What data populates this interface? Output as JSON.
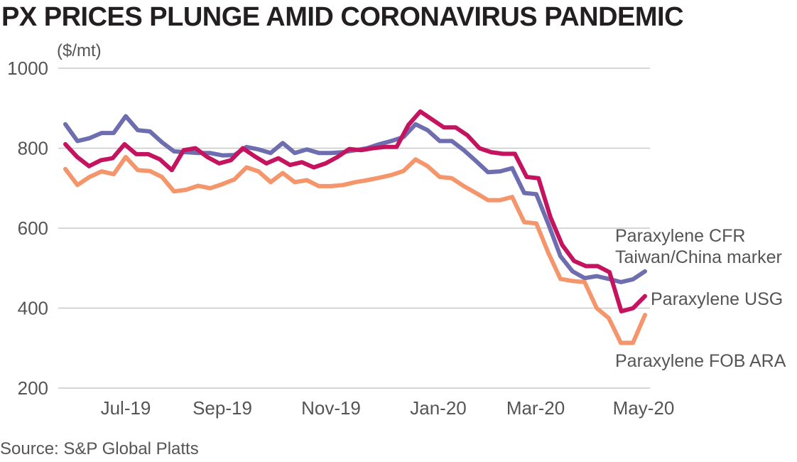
{
  "chart_data": {
    "type": "line",
    "title": "PX PRICES PLUNGE AMID CORONAVIRUS PANDEMIC",
    "ylabel": "($/mt)",
    "source": "Source: S&P Global Platts",
    "ylim": [
      200,
      1000
    ],
    "yticks": [
      1000,
      800,
      600,
      400,
      200
    ],
    "xtick_labels": [
      "Jul-19",
      "Sep-19",
      "Nov-19",
      "Jan-20",
      "Mar-20",
      "May-20"
    ],
    "grid": true,
    "series": [
      {
        "name": "Paraxylene CFR Taiwan/China marker",
        "legend_lines": [
          "Paraxylene CFR",
          "Taiwan/China marker"
        ],
        "color": "#6e6db0",
        "values": [
          860,
          818,
          825,
          838,
          838,
          880,
          845,
          842,
          815,
          792,
          790,
          788,
          788,
          782,
          783,
          803,
          797,
          788,
          813,
          788,
          797,
          788,
          788,
          790,
          795,
          800,
          810,
          818,
          828,
          860,
          845,
          818,
          818,
          795,
          768,
          740,
          742,
          750,
          688,
          685,
          610,
          530,
          492,
          475,
          480,
          473,
          465,
          472,
          492
        ]
      },
      {
        "name": "Paraxylene USG",
        "legend_lines": [
          "Paraxylene USG"
        ],
        "color": "#c4145f",
        "values": [
          810,
          778,
          755,
          770,
          775,
          810,
          785,
          785,
          772,
          745,
          795,
          800,
          778,
          762,
          770,
          800,
          780,
          762,
          775,
          758,
          765,
          752,
          762,
          778,
          798,
          795,
          800,
          803,
          803,
          858,
          892,
          872,
          852,
          852,
          832,
          800,
          790,
          786,
          786,
          728,
          725,
          628,
          558,
          518,
          505,
          505,
          490,
          392,
          400,
          430
        ]
      },
      {
        "name": "Paraxylene FOB ARA",
        "legend_lines": [
          "Paraxylene FOB ARA"
        ],
        "color": "#f4956b",
        "values": [
          748,
          708,
          728,
          742,
          735,
          778,
          745,
          743,
          728,
          692,
          696,
          706,
          700,
          710,
          722,
          752,
          742,
          715,
          738,
          715,
          720,
          705,
          705,
          708,
          715,
          720,
          726,
          733,
          743,
          772,
          755,
          728,
          725,
          705,
          688,
          670,
          670,
          678,
          615,
          612,
          538,
          473,
          468,
          465,
          400,
          375,
          313,
          313,
          383
        ]
      }
    ]
  }
}
